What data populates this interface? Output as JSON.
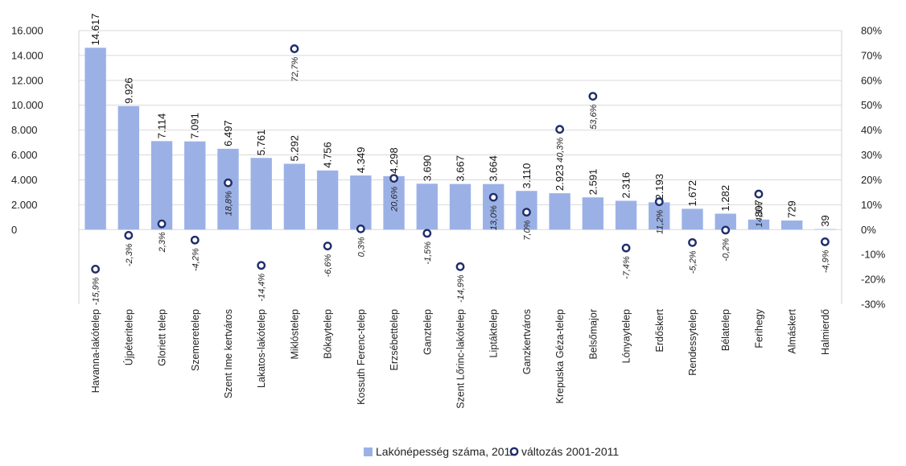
{
  "chart_data": {
    "type": "bar",
    "categories": [
      "Havanna-lakótelep",
      "Újpéteritelep",
      "Gloriett telep",
      "Szemeretelep",
      "Szent Ime kertváros",
      "Lakatos-lakótelep",
      "Miklóstelep",
      "Bókaytelep",
      "Kossuth Ferenc-telep",
      "Erzsébettelep",
      "Ganztelep",
      "Szent Lőrinc-lakótelep",
      "Liptáktelep",
      "Ganzkertváros",
      "Krepuska Géza-telep",
      "Belsőmajor",
      "Lónyaytelep",
      "Erdőskert",
      "Rendessytelep",
      "Bélatelep",
      "Ferihegy",
      "Almáskert",
      "Halmierdő"
    ],
    "series": [
      {
        "name": "Lakónépesség száma, 2011",
        "type": "bar",
        "axis": "left",
        "color": "#9bb1e6",
        "values": [
          14617,
          9926,
          7114,
          7091,
          6497,
          5761,
          5292,
          4756,
          4349,
          4298,
          3690,
          3667,
          3664,
          3110,
          2923,
          2591,
          2316,
          2193,
          1672,
          1282,
          807,
          729,
          39
        ],
        "labels": [
          "14.617",
          "9.926",
          "7.114",
          "7.091",
          "6.497",
          "5.761",
          "5.292",
          "4.756",
          "4.349",
          "4.298",
          "3.690",
          "3.667",
          "3.664",
          "3.110",
          "2.923",
          "2.591",
          "2.316",
          "2.193",
          "1.672",
          "1.282",
          "807",
          "729",
          "39"
        ]
      },
      {
        "name": "változás 2001-2011",
        "type": "scatter",
        "axis": "right",
        "color": "#1f2d6b",
        "values": [
          -15.9,
          -2.3,
          2.3,
          -4.2,
          18.8,
          -14.4,
          72.7,
          -6.6,
          0.3,
          20.6,
          -1.5,
          -14.9,
          13.0,
          7.0,
          40.3,
          53.6,
          -7.4,
          11.2,
          -5.2,
          -0.2,
          14.3,
          null,
          -4.9
        ],
        "labels": [
          "-15,9%",
          "-2,3%",
          "2,3%",
          "-4,2%",
          "18,8%",
          "-14,4%",
          "72,7%",
          "-6,6%",
          "0,3%",
          "20,6%",
          "-1,5%",
          "-14,9%",
          "13,0%",
          "7,0%",
          "40,3%",
          "53,6%",
          "-7,4%",
          "11,2%",
          "-5,2%",
          "-0,2%",
          "14,3%",
          "",
          "-4,9%"
        ]
      }
    ],
    "y_left": {
      "ylim": [
        -6000,
        16000
      ],
      "ticks": [
        0,
        2000,
        4000,
        6000,
        8000,
        10000,
        12000,
        14000,
        16000
      ],
      "tick_labels": [
        "0",
        "2.000",
        "4.000",
        "6.000",
        "8.000",
        "10.000",
        "12.000",
        "14.000",
        "16.000"
      ]
    },
    "y_right": {
      "ylim": [
        -30,
        80
      ],
      "ticks": [
        -30,
        -20,
        -10,
        0,
        10,
        20,
        30,
        40,
        50,
        60,
        70,
        80
      ],
      "tick_labels": [
        "-30%",
        "-20%",
        "-10%",
        "0%",
        "10%",
        "20%",
        "30%",
        "40%",
        "50%",
        "60%",
        "70%",
        "80%"
      ]
    },
    "grid": "horizontal",
    "legend": {
      "placement": "bottom"
    }
  }
}
